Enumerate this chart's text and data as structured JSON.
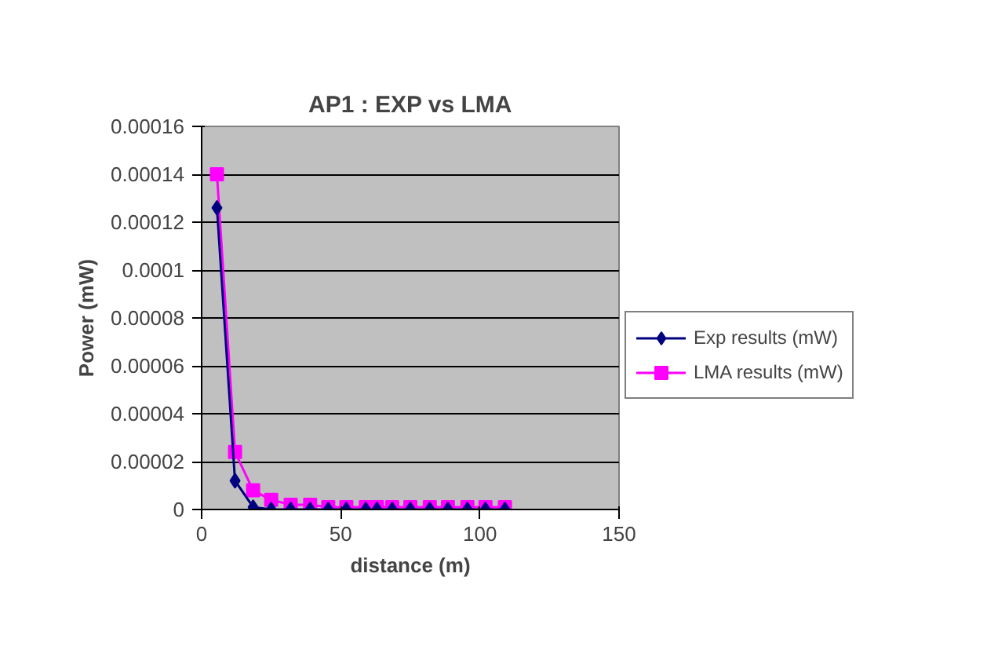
{
  "chart_data": {
    "type": "line",
    "title": "AP1 : EXP vs LMA",
    "xlabel": "distance (m)",
    "ylabel": "Power (mW)",
    "x": [
      5.5,
      12,
      18.5,
      25,
      32,
      39,
      45.5,
      52,
      59,
      63,
      68.5,
      75,
      82,
      88.5,
      95.5,
      102,
      109
    ],
    "series": [
      {
        "name": "Exp results (mW)",
        "color": "#000080",
        "marker": "diamond",
        "values": [
          0.000126,
          1.2e-05,
          1e-06,
          0,
          0,
          0,
          0,
          0,
          0,
          0,
          0,
          0,
          0,
          0,
          0,
          0,
          0
        ]
      },
      {
        "name": "LMA results (mW)",
        "color": "#ff00ff",
        "marker": "square",
        "values": [
          0.00014,
          2.4e-05,
          8e-06,
          4e-06,
          2e-06,
          2e-06,
          1e-06,
          1e-06,
          1e-06,
          1e-06,
          1e-06,
          1e-06,
          1e-06,
          1e-06,
          1e-06,
          1e-06,
          1e-06
        ]
      }
    ],
    "xlim": [
      0,
      150
    ],
    "xticks": [
      0,
      50,
      100,
      150
    ],
    "ylim": [
      0,
      0.00016
    ],
    "yticks": [
      {
        "value": 0,
        "label": "0"
      },
      {
        "value": 2e-05,
        "label": "0.00002"
      },
      {
        "value": 4e-05,
        "label": "0.00004"
      },
      {
        "value": 6e-05,
        "label": "0.00006"
      },
      {
        "value": 8e-05,
        "label": "0.00008"
      },
      {
        "value": 0.0001,
        "label": "0.0001"
      },
      {
        "value": 0.00012,
        "label": "0.00012"
      },
      {
        "value": 0.00014,
        "label": "0.00014"
      },
      {
        "value": 0.00016,
        "label": "0.00016"
      }
    ],
    "grid": "y",
    "legend": "right"
  }
}
